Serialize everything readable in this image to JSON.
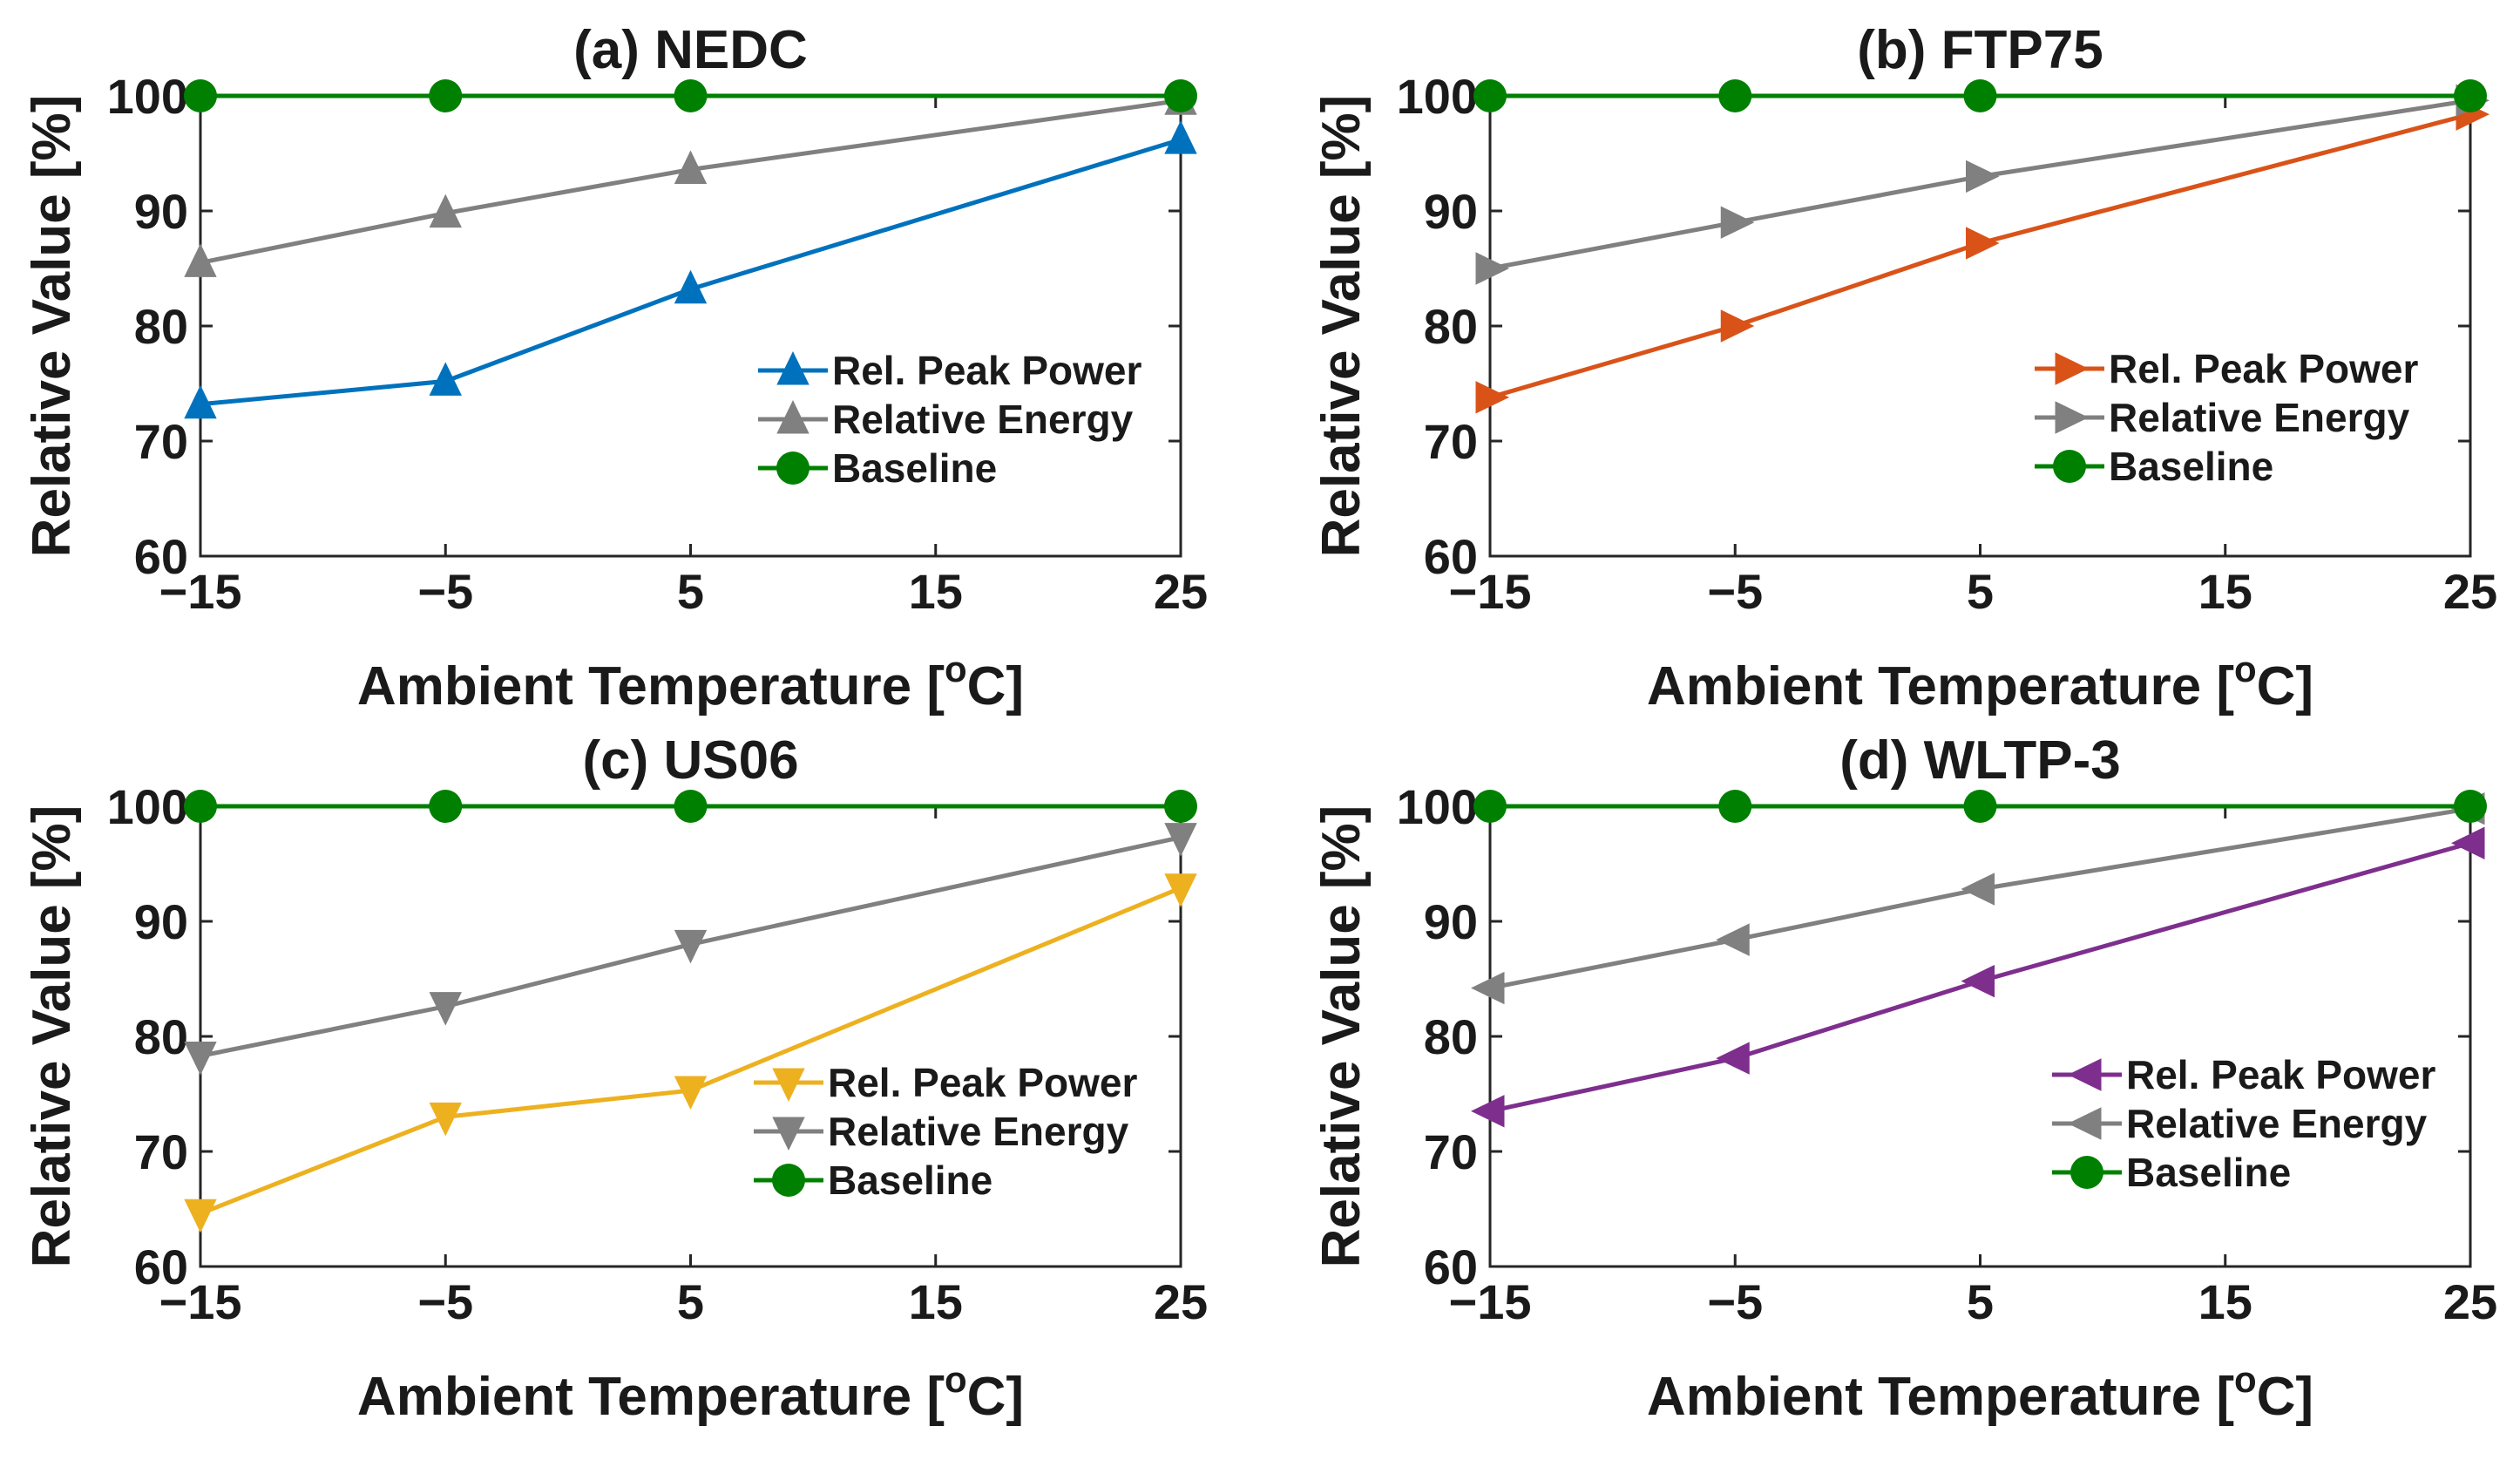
{
  "chart_data": [
    {
      "type": "line",
      "title": "(a) NEDC",
      "xlabel": "Ambient Temperature [",
      "xlabel_sup": "o",
      "xlabel_end": "C]",
      "ylabel": "Relative Value [%]",
      "x": [
        -15,
        -5,
        5,
        25
      ],
      "xlim": [
        -15,
        25
      ],
      "ylim": [
        60,
        100
      ],
      "xticks": [
        -15,
        -5,
        5,
        15,
        25
      ],
      "xtick_labels": [
        "−15",
        "−5",
        "5",
        "15",
        "25"
      ],
      "yticks": [
        60,
        70,
        80,
        90,
        100
      ],
      "ytick_labels": [
        "60",
        "70",
        "80",
        "90",
        "100"
      ],
      "marker": "triangle-up",
      "legend_position": "right",
      "series": [
        {
          "name": "Rel. Peak Power",
          "values": [
            73.2,
            75.2,
            83.2,
            96.2
          ],
          "color": "#0072BD"
        },
        {
          "name": "Relative Energy",
          "values": [
            85.5,
            89.8,
            93.6,
            99.6
          ],
          "color": "#808080"
        },
        {
          "name": "Baseline",
          "values": [
            100,
            100,
            100,
            100
          ],
          "color": "#008000"
        }
      ]
    },
    {
      "type": "line",
      "title": "(b) FTP75",
      "xlabel": "Ambient Temperature [",
      "xlabel_sup": "o",
      "xlabel_end": "C]",
      "ylabel": "Relative Value [%]",
      "x": [
        -15,
        -5,
        5,
        25
      ],
      "xlim": [
        -15,
        25
      ],
      "ylim": [
        60,
        100
      ],
      "xticks": [
        -15,
        -5,
        5,
        15,
        25
      ],
      "xtick_labels": [
        "−15",
        "−5",
        "5",
        "15",
        "25"
      ],
      "yticks": [
        60,
        70,
        80,
        90,
        100
      ],
      "ytick_labels": [
        "60",
        "70",
        "80",
        "90",
        "100"
      ],
      "marker": "triangle-right",
      "legend_position": "right",
      "series": [
        {
          "name": "Rel. Peak Power",
          "values": [
            73.8,
            80.0,
            87.2,
            98.4
          ],
          "color": "#D95319"
        },
        {
          "name": "Relative Energy",
          "values": [
            85.0,
            89.0,
            93.0,
            99.6
          ],
          "color": "#808080"
        },
        {
          "name": "Baseline",
          "values": [
            100,
            100,
            100,
            100
          ],
          "color": "#008000"
        }
      ]
    },
    {
      "type": "line",
      "title": "(c) US06",
      "xlabel": "Ambient Temperature [",
      "xlabel_sup": "o",
      "xlabel_end": "C]",
      "ylabel": "Relative Value [%]",
      "x": [
        -15,
        -5,
        5,
        25
      ],
      "xlim": [
        -15,
        25
      ],
      "ylim": [
        60,
        100
      ],
      "xticks": [
        -15,
        -5,
        5,
        15,
        25
      ],
      "xtick_labels": [
        "−15",
        "−5",
        "5",
        "15",
        "25"
      ],
      "yticks": [
        60,
        70,
        80,
        90,
        100
      ],
      "ytick_labels": [
        "60",
        "70",
        "80",
        "90",
        "100"
      ],
      "marker": "triangle-down",
      "legend_position": "right",
      "series": [
        {
          "name": "Rel. Peak Power",
          "values": [
            64.6,
            73.0,
            75.3,
            92.9
          ],
          "color": "#EDB120"
        },
        {
          "name": "Relative Energy",
          "values": [
            78.3,
            82.6,
            88.0,
            97.3
          ],
          "color": "#808080"
        },
        {
          "name": "Baseline",
          "values": [
            100,
            100,
            100,
            100
          ],
          "color": "#008000"
        }
      ]
    },
    {
      "type": "line",
      "title": "(d) WLTP-3",
      "xlabel": "Ambient Temperature [",
      "xlabel_sup": "o",
      "xlabel_end": "C]",
      "ylabel": "Relative Value [%]",
      "x": [
        -15,
        -5,
        5,
        25
      ],
      "xlim": [
        -15,
        25
      ],
      "ylim": [
        60,
        100
      ],
      "xticks": [
        -15,
        -5,
        5,
        15,
        25
      ],
      "xtick_labels": [
        "−15",
        "−5",
        "5",
        "15",
        "25"
      ],
      "yticks": [
        60,
        70,
        80,
        90,
        100
      ],
      "ytick_labels": [
        "60",
        "70",
        "80",
        "90",
        "100"
      ],
      "marker": "triangle-left",
      "legend_position": "right",
      "series": [
        {
          "name": "Rel. Peak Power",
          "values": [
            73.5,
            78.1,
            84.8,
            96.8
          ],
          "color": "#7E2F8E"
        },
        {
          "name": "Relative Energy",
          "values": [
            84.2,
            88.4,
            92.8,
            99.8
          ],
          "color": "#808080"
        },
        {
          "name": "Baseline",
          "values": [
            100,
            100,
            100,
            100
          ],
          "color": "#008000"
        }
      ]
    }
  ]
}
